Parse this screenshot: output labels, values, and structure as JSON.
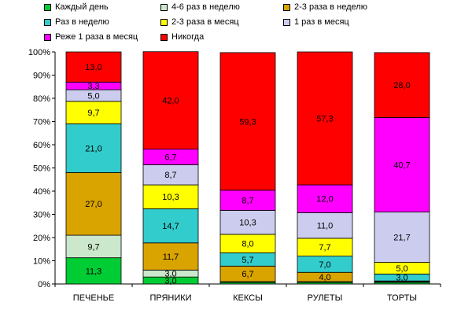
{
  "chart_data": {
    "type": "bar",
    "stacked": true,
    "percent": true,
    "categories": [
      "ПЕЧЕНЬЕ",
      "ПРЯНИКИ",
      "КЕКСЫ",
      "РУЛЕТЫ",
      "ТОРТЫ"
    ],
    "series": [
      {
        "name": "Каждый день",
        "color": "#00CC33",
        "values": [
          11.3,
          3.0,
          0.7,
          0.7,
          0.7
        ],
        "labels": [
          "11,3",
          "3,0",
          "",
          "",
          ""
        ]
      },
      {
        "name": "4-6 раз в неделю",
        "color": "#CCE8CC",
        "values": [
          9.7,
          3.0,
          0.3,
          0.3,
          0.3
        ],
        "labels": [
          "9,7",
          "3,0",
          "",
          "",
          ""
        ]
      },
      {
        "name": "2-3 раза в неделю",
        "color": "#D9A400",
        "values": [
          27.0,
          11.7,
          6.7,
          4.0,
          0.3
        ],
        "labels": [
          "27,0",
          "11,7",
          "6,7",
          "4,0",
          ""
        ]
      },
      {
        "name": "Раз в неделю",
        "color": "#33CCCC",
        "values": [
          21.0,
          14.7,
          5.7,
          7.0,
          3.0
        ],
        "labels": [
          "21,0",
          "14,7",
          "5,7",
          "7,0",
          "3,0"
        ]
      },
      {
        "name": "2-3 раза в месяц",
        "color": "#FFFF00",
        "values": [
          9.7,
          10.3,
          8.0,
          7.7,
          5.0
        ],
        "labels": [
          "9,7",
          "10,3",
          "8,0",
          "7,7",
          "5,0"
        ]
      },
      {
        "name": "1 раз в месяц",
        "color": "#CCCCEE",
        "values": [
          5.0,
          8.7,
          10.3,
          11.0,
          21.7
        ],
        "labels": [
          "5,0",
          "8,7",
          "10,3",
          "11,0",
          "21,7"
        ]
      },
      {
        "name": "Реже 1 раза в месяц",
        "color": "#FF00FF",
        "values": [
          3.3,
          6.7,
          8.7,
          12.0,
          40.7
        ],
        "labels": [
          "3,3",
          "6,7",
          "8,7",
          "12,0",
          "40,7"
        ]
      },
      {
        "name": "Никогда",
        "color": "#FF0000",
        "values": [
          13.0,
          42.0,
          59.3,
          57.3,
          28.0
        ],
        "labels": [
          "13,0",
          "42,0",
          "59,3",
          "57,3",
          "28,0"
        ]
      }
    ],
    "y_ticks": [
      "0%",
      "10%",
      "20%",
      "30%",
      "40%",
      "50%",
      "60%",
      "70%",
      "80%",
      "90%",
      "100%"
    ],
    "ylim": [
      0,
      100
    ],
    "grid": false,
    "legend_position": "top"
  }
}
